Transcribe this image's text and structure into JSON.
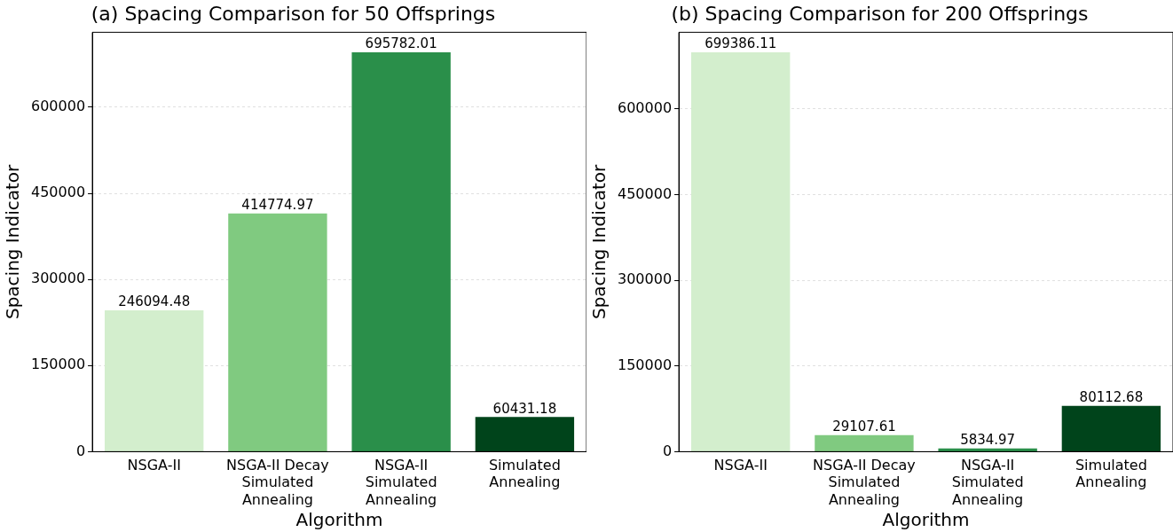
{
  "chart_data": [
    {
      "type": "bar",
      "title": "(a) Spacing Comparison for 50 Offsprings",
      "xlabel": "Algorithm",
      "ylabel": "Spacing Indicator",
      "categories": [
        "NSGA-II",
        "NSGA-II Decay Simulated Annealing",
        "NSGA-II Simulated Annealing",
        "Simulated Annealing"
      ],
      "values": [
        246094.48,
        414774.97,
        695782.01,
        60431.18
      ],
      "colors": [
        "#d3eecd",
        "#80ca80",
        "#2a8f4a",
        "#00441b"
      ],
      "ylim": [
        0,
        730571
      ],
      "yticks": [
        0,
        150000,
        300000,
        450000,
        600000
      ],
      "grid": "y",
      "data_labels": true
    },
    {
      "type": "bar",
      "title": "(b) Spacing Comparison for 200 Offsprings",
      "xlabel": "Algorithm",
      "ylabel": "Spacing Indicator",
      "categories": [
        "NSGA-II",
        "NSGA-II Decay Simulated Annealing",
        "NSGA-II Simulated Annealing",
        "Simulated Annealing"
      ],
      "values": [
        699386.11,
        29107.61,
        5834.97,
        80112.68
      ],
      "colors": [
        "#d3eecd",
        "#80ca80",
        "#2a8f4a",
        "#00441b"
      ],
      "ylim": [
        0,
        734355
      ],
      "yticks": [
        0,
        150000,
        300000,
        450000,
        600000
      ],
      "grid": "y",
      "data_labels": true
    }
  ]
}
